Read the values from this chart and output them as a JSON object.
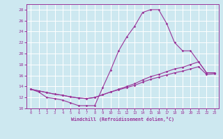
{
  "xlabel": "Windchill (Refroidissement éolien,°C)",
  "background_color": "#cde8f0",
  "grid_color": "#ffffff",
  "line_color": "#993399",
  "xlim": [
    -0.5,
    23.5
  ],
  "ylim": [
    10,
    29
  ],
  "xticks": [
    0,
    1,
    2,
    3,
    4,
    5,
    6,
    7,
    8,
    9,
    10,
    11,
    12,
    13,
    14,
    15,
    16,
    17,
    18,
    19,
    20,
    21,
    22,
    23
  ],
  "yticks": [
    10,
    12,
    14,
    16,
    18,
    20,
    22,
    24,
    26,
    28
  ],
  "hours": [
    0,
    1,
    2,
    3,
    4,
    5,
    6,
    7,
    8,
    9,
    10,
    11,
    12,
    13,
    14,
    15,
    16,
    17,
    18,
    19,
    20,
    21,
    22,
    23
  ],
  "temp_line": [
    13.5,
    13.0,
    12.0,
    11.8,
    11.5,
    11.0,
    10.5,
    10.5,
    10.5,
    13.8,
    17.0,
    20.5,
    23.0,
    25.0,
    27.5,
    28.0,
    28.0,
    25.5,
    22.0,
    20.5,
    20.5,
    18.5,
    16.5,
    16.5
  ],
  "wc_line1": [
    13.5,
    13.2,
    12.9,
    12.6,
    12.4,
    12.1,
    11.9,
    11.8,
    12.0,
    12.5,
    13.0,
    13.5,
    14.0,
    14.5,
    15.2,
    15.8,
    16.2,
    16.7,
    17.2,
    17.5,
    18.0,
    18.5,
    16.5,
    16.5
  ],
  "wc_line2": [
    13.5,
    13.2,
    12.9,
    12.6,
    12.4,
    12.1,
    11.9,
    11.8,
    12.0,
    12.5,
    13.0,
    13.4,
    13.8,
    14.2,
    14.8,
    15.3,
    15.7,
    16.1,
    16.5,
    16.8,
    17.2,
    17.6,
    16.2,
    16.3
  ]
}
